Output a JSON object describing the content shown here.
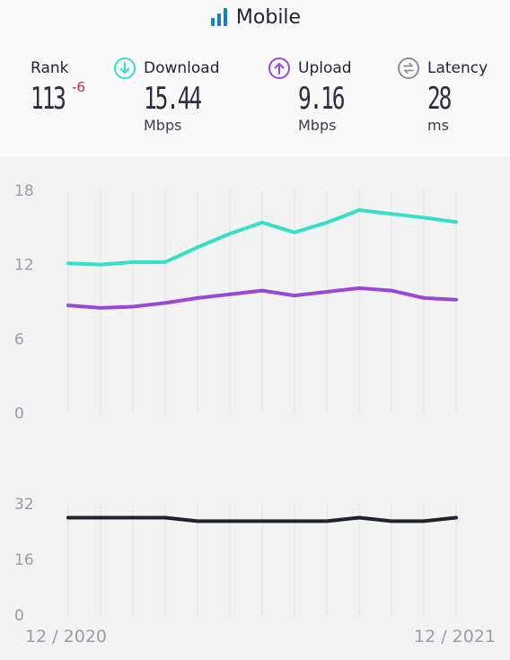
{
  "header": {
    "title": "Mobile",
    "icon": "signal-bars-icon"
  },
  "metrics": {
    "rank": {
      "label": "Rank",
      "value": "113",
      "change": "-6"
    },
    "download": {
      "label": "Download",
      "value": "15.44",
      "unit": "Mbps",
      "icon": "download-arrow-icon",
      "color": "#36dfc8"
    },
    "upload": {
      "label": "Upload",
      "value": "9.16",
      "unit": "Mbps",
      "icon": "upload-arrow-icon",
      "color": "#9b47d8"
    },
    "latency": {
      "label": "Latency",
      "value": "28",
      "unit": "ms",
      "icon": "latency-icon",
      "color": "#8c8f9c"
    }
  },
  "chart_data": [
    {
      "type": "line",
      "x_start_label": "12 / 2020",
      "x_end_label": "12 / 2021",
      "ylim": [
        0,
        18
      ],
      "yticks": [
        "0",
        "6",
        "12",
        "18"
      ],
      "grid": "vertical",
      "series": [
        {
          "color": "#36dfc8",
          "values": [
            12.1,
            12.0,
            12.2,
            12.2,
            13.4,
            14.5,
            15.4,
            14.6,
            15.4,
            16.4,
            16.1,
            15.8,
            15.44
          ]
        },
        {
          "color": "#9b47d8",
          "values": [
            8.7,
            8.5,
            8.6,
            8.9,
            9.3,
            9.6,
            9.9,
            9.5,
            9.8,
            10.1,
            9.9,
            9.3,
            9.16
          ]
        }
      ]
    },
    {
      "type": "line",
      "ylim": [
        0,
        32
      ],
      "yticks": [
        "0",
        "16",
        "32"
      ],
      "grid": "vertical",
      "series": [
        {
          "color": "#1e2235",
          "values": [
            28,
            28,
            28,
            28,
            27,
            27,
            27,
            27,
            27,
            28,
            27,
            27,
            28
          ]
        }
      ]
    }
  ]
}
